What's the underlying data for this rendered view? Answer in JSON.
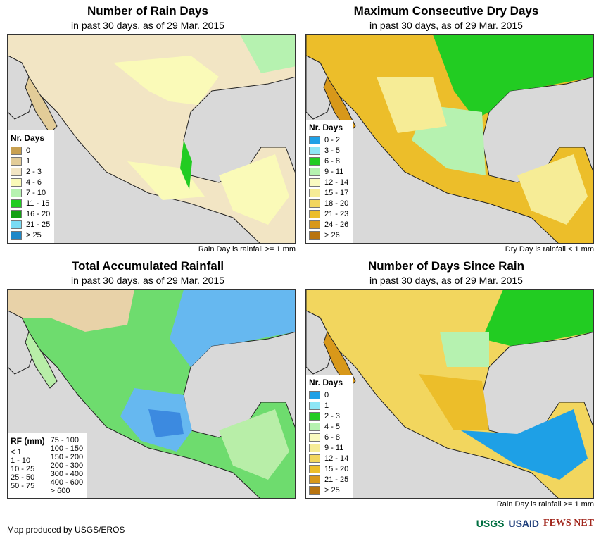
{
  "panels": {
    "rain_days": {
      "title": "Number of Rain Days",
      "subtitle": "in past 30 days, as of 29 Mar. 2015",
      "note": "Rain Day is rainfall >= 1 mm",
      "legend_title": "Nr. Days",
      "legend": [
        {
          "label": "0",
          "color": "#c8a050"
        },
        {
          "label": "1",
          "color": "#e2cc98"
        },
        {
          "label": "2 - 3",
          "color": "#f2e5c4"
        },
        {
          "label": "4 - 6",
          "color": "#fafab8"
        },
        {
          "label": "7 - 10",
          "color": "#b6f2b0"
        },
        {
          "label": "11 - 15",
          "color": "#22cc22"
        },
        {
          "label": "16 - 20",
          "color": "#14a014"
        },
        {
          "label": "21 - 25",
          "color": "#7adcf4"
        },
        {
          "label": "> 25",
          "color": "#1e88c8"
        }
      ]
    },
    "dry_days": {
      "title": "Maximum Consecutive Dry Days",
      "subtitle": "in past 30 days, as of 29 Mar. 2015",
      "note": "Dry Day is rainfall < 1 mm",
      "legend_title": "Nr. Days",
      "legend": [
        {
          "label": "0 - 2",
          "color": "#1ea0e6"
        },
        {
          "label": "3 - 5",
          "color": "#8ee6f6"
        },
        {
          "label": "6 - 8",
          "color": "#22cc22"
        },
        {
          "label": "9 - 11",
          "color": "#b6f2b0"
        },
        {
          "label": "12 - 14",
          "color": "#fafac0"
        },
        {
          "label": "15 - 17",
          "color": "#f6ec96"
        },
        {
          "label": "18 - 20",
          "color": "#f2d65e"
        },
        {
          "label": "21 - 23",
          "color": "#ecbe2a"
        },
        {
          "label": "24 - 26",
          "color": "#d8981a"
        },
        {
          "label": "> 26",
          "color": "#b87410"
        }
      ]
    },
    "rainfall": {
      "title": "Total Accumulated Rainfall",
      "subtitle": "in past 30 days, as of 29 Mar. 2015",
      "note": "",
      "legend_title": "RF (mm)",
      "legend_col1": [
        {
          "label": "< 1",
          "color": "#ffffff"
        },
        {
          "label": "1 - 10",
          "color": "#e8d2a8"
        },
        {
          "label": "10 - 25",
          "color": "#b8eea8"
        },
        {
          "label": "25 - 50",
          "color": "#6edc6e"
        },
        {
          "label": "50 - 75",
          "color": "#2eb82e"
        }
      ],
      "legend_col2": [
        {
          "label": "75 - 100",
          "color": "#a8e2f6"
        },
        {
          "label": "100 - 150",
          "color": "#66b8f0"
        },
        {
          "label": "150 - 200",
          "color": "#3c8ae0"
        },
        {
          "label": "200 - 300",
          "color": "#1f5cc8"
        },
        {
          "label": "300 - 400",
          "color": "#f4e070"
        },
        {
          "label": "400 - 600",
          "color": "#f29a1c"
        },
        {
          "label": "> 600",
          "color": "#e62a10"
        }
      ]
    },
    "days_since": {
      "title": "Number of Days Since Rain",
      "subtitle": "in past 30 days, as of 29 Mar. 2015",
      "note": "Rain Day is rainfall >= 1 mm",
      "legend_title": "Nr. Days",
      "legend": [
        {
          "label": "0",
          "color": "#1ea0e6"
        },
        {
          "label": "1",
          "color": "#8ee6f6"
        },
        {
          "label": "2 - 3",
          "color": "#22cc22"
        },
        {
          "label": "4 - 5",
          "color": "#b6f2b0"
        },
        {
          "label": "6 - 8",
          "color": "#fafac0"
        },
        {
          "label": "9 - 11",
          "color": "#f6ec96"
        },
        {
          "label": "12 - 14",
          "color": "#f2d65e"
        },
        {
          "label": "15 - 20",
          "color": "#ecbe2a"
        },
        {
          "label": "21 - 25",
          "color": "#d8981a"
        },
        {
          "label": "> 25",
          "color": "#b87410"
        }
      ]
    }
  },
  "footer": {
    "credit": "Map produced by USGS/EROS",
    "logos": [
      "USGS",
      "USAID",
      "FEWS NET"
    ]
  },
  "colors": {
    "water": "#d9d9d9",
    "boundary": "#222222"
  }
}
